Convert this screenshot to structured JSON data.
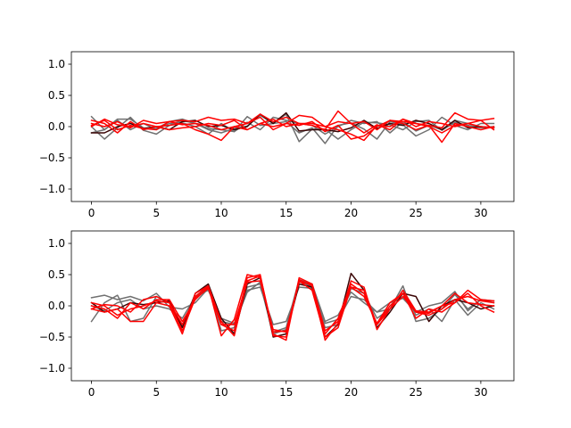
{
  "chart_data": [
    {
      "type": "line",
      "xlim": [
        -1.55,
        32.55
      ],
      "ylim": [
        -1.2,
        1.2
      ],
      "x_ticks": [
        0,
        5,
        10,
        15,
        20,
        25,
        30
      ],
      "y_ticks": [
        -1.0,
        -0.5,
        0.0,
        0.5,
        1.0
      ],
      "x_tick_labels": [
        "0",
        "5",
        "10",
        "15",
        "20",
        "25",
        "30"
      ],
      "y_tick_labels": [
        "−1.0",
        "−0.5",
        "0.0",
        "0.5",
        "1.0"
      ],
      "grid": false,
      "x": [
        0,
        1,
        2,
        3,
        4,
        5,
        6,
        7,
        8,
        9,
        10,
        11,
        12,
        13,
        14,
        15,
        16,
        17,
        18,
        19,
        20,
        21,
        22,
        23,
        24,
        25,
        26,
        27,
        28,
        29,
        30,
        31
      ],
      "series": [
        {
          "color": "#707070",
          "values": [
            0.16,
            -0.05,
            0.12,
            0.12,
            -0.02,
            -0.03,
            0.08,
            0.12,
            0.05,
            -0.03,
            -0.05,
            -0.08,
            0.16,
            0.02,
            0.05,
            0.2,
            -0.24,
            -0.04,
            -0.04,
            -0.2,
            -0.05,
            0.07,
            0.06,
            0.03,
            -0.05,
            0.08,
            0.1,
            -0.06,
            0.07,
            0.02,
            -0.02,
            -0.01
          ]
        },
        {
          "color": "#707070",
          "values": [
            0.0,
            -0.2,
            -0.02,
            0.15,
            -0.06,
            -0.12,
            0.02,
            0.1,
            0.05,
            -0.05,
            -0.1,
            -0.03,
            0.01,
            0.18,
            0.05,
            0.08,
            -0.1,
            -0.02,
            -0.27,
            0.02,
            0.06,
            -0.04,
            -0.2,
            0.08,
            0.03,
            -0.15,
            -0.05,
            0.15,
            0.02,
            -0.05,
            0.05,
            0.05
          ]
        },
        {
          "color": "#707070",
          "values": [
            -0.1,
            -0.05,
            0.1,
            -0.05,
            0.05,
            -0.05,
            0.05,
            0.06,
            0.0,
            -0.12,
            0.05,
            -0.08,
            0.07,
            -0.05,
            0.15,
            0.1,
            0.05,
            0.02,
            -0.12,
            0.0,
            0.1,
            0.05,
            0.08,
            -0.1,
            0.08,
            -0.07,
            0.02,
            -0.05,
            0.1,
            0.05,
            -0.01,
            0.0
          ]
        },
        {
          "color": "#3a0505",
          "values": [
            -0.1,
            -0.1,
            0.0,
            0.05,
            -0.03,
            0.0,
            -0.05,
            0.08,
            0.1,
            0.0,
            0.02,
            -0.05,
            0.0,
            0.2,
            0.05,
            0.22,
            -0.07,
            -0.05,
            -0.05,
            -0.08,
            -0.02,
            0.1,
            -0.03,
            0.05,
            0.02,
            0.1,
            0.05,
            -0.05,
            0.1,
            -0.02,
            0.0,
            -0.02
          ]
        },
        {
          "color": "#ff0000",
          "values": [
            0.05,
            0.0,
            0.08,
            -0.02,
            0.1,
            0.05,
            0.08,
            0.1,
            0.08,
            0.15,
            0.1,
            0.12,
            0.05,
            0.2,
            0.08,
            0.15,
            0.05,
            0.02,
            -0.05,
            0.25,
            0.05,
            0.08,
            -0.05,
            0.1,
            0.08,
            0.05,
            0.02,
            -0.02,
            0.22,
            0.12,
            0.1,
            0.13
          ]
        },
        {
          "color": "#ff0000",
          "values": [
            0.02,
            0.1,
            -0.05,
            0.02,
            -0.03,
            -0.05,
            0.08,
            0.03,
            0.05,
            0.02,
            -0.05,
            0.0,
            0.05,
            0.15,
            -0.05,
            0.05,
            0.02,
            0.08,
            -0.08,
            0.02,
            -0.2,
            -0.15,
            0.0,
            0.1,
            0.05,
            -0.05,
            0.02,
            -0.25,
            0.05,
            0.0,
            -0.05,
            0.0
          ]
        },
        {
          "color": "#ff0000",
          "values": [
            0.0,
            0.12,
            0.03,
            0.0,
            0.05,
            0.0,
            0.02,
            0.05,
            -0.05,
            -0.12,
            -0.22,
            0.0,
            -0.05,
            0.05,
            0.0,
            0.05,
            0.18,
            0.15,
            0.0,
            -0.05,
            -0.12,
            -0.22,
            0.02,
            0.0,
            0.12,
            0.05,
            0.0,
            -0.1,
            0.02,
            0.05,
            0.0,
            -0.02
          ]
        },
        {
          "color": "#ff0000",
          "values": [
            0.1,
            0.05,
            -0.1,
            0.08,
            -0.05,
            0.0,
            -0.05,
            -0.02,
            0.0,
            0.05,
            0.02,
            0.1,
            -0.05,
            0.05,
            0.12,
            0.0,
            0.05,
            0.05,
            0.0,
            0.08,
            0.05,
            -0.1,
            0.03,
            -0.05,
            0.12,
            0.0,
            0.08,
            0.05,
            0.0,
            0.05,
            0.1,
            -0.05
          ]
        }
      ]
    },
    {
      "type": "line",
      "xlim": [
        -1.55,
        32.55
      ],
      "ylim": [
        -1.2,
        1.2
      ],
      "x_ticks": [
        0,
        5,
        10,
        15,
        20,
        25,
        30
      ],
      "y_ticks": [
        -1.0,
        -0.5,
        0.0,
        0.5,
        1.0
      ],
      "x_tick_labels": [
        "0",
        "5",
        "10",
        "15",
        "20",
        "25",
        "30"
      ],
      "y_tick_labels": [
        "−1.0",
        "−0.5",
        "0.0",
        "0.5",
        "1.0"
      ],
      "grid": false,
      "x": [
        0,
        1,
        2,
        3,
        4,
        5,
        6,
        7,
        8,
        9,
        10,
        11,
        12,
        13,
        14,
        15,
        16,
        17,
        18,
        19,
        20,
        21,
        22,
        23,
        24,
        25,
        26,
        27,
        28,
        29,
        30,
        31
      ],
      "series": [
        {
          "color": "#707070",
          "values": [
            0.13,
            0.17,
            0.1,
            0.15,
            0.08,
            0.2,
            -0.02,
            -0.05,
            0.05,
            0.28,
            -0.25,
            -0.3,
            0.22,
            0.38,
            -0.42,
            -0.35,
            0.42,
            0.35,
            -0.25,
            -0.15,
            0.22,
            0.05,
            -0.1,
            -0.05,
            0.32,
            -0.25,
            -0.2,
            -0.05,
            0.18,
            -0.05,
            0.1,
            0.05
          ]
        },
        {
          "color": "#707070",
          "values": [
            -0.25,
            0.05,
            0.17,
            -0.25,
            -0.2,
            0.15,
            0.05,
            -0.32,
            0.12,
            0.3,
            -0.4,
            -0.35,
            0.3,
            0.35,
            -0.45,
            -0.38,
            0.4,
            0.3,
            -0.35,
            -0.3,
            0.28,
            0.2,
            -0.2,
            -0.05,
            0.25,
            -0.15,
            -0.05,
            -0.25,
            0.1,
            -0.15,
            0.05,
            -0.05
          ]
        },
        {
          "color": "#707070",
          "values": [
            0.0,
            -0.08,
            0.05,
            0.1,
            -0.05,
            0.0,
            -0.05,
            -0.2,
            0.15,
            0.25,
            -0.2,
            -0.28,
            0.25,
            0.3,
            -0.3,
            -0.25,
            0.3,
            0.28,
            -0.28,
            -0.22,
            0.15,
            0.1,
            -0.1,
            0.05,
            0.12,
            -0.1,
            0.0,
            0.05,
            0.23,
            -0.08,
            0.1,
            0.08
          ]
        },
        {
          "color": "#3a0505",
          "values": [
            0.05,
            -0.1,
            -0.05,
            0.05,
            0.02,
            0.05,
            0.08,
            -0.35,
            0.2,
            0.35,
            -0.2,
            -0.45,
            0.35,
            0.45,
            -0.5,
            -0.45,
            0.35,
            0.3,
            -0.5,
            -0.3,
            0.52,
            0.25,
            -0.35,
            -0.1,
            0.2,
            0.15,
            -0.25,
            0.0,
            0.1,
            0.05,
            -0.05,
            0.0
          ]
        },
        {
          "color": "#ff0000",
          "values": [
            -0.05,
            0.02,
            0.0,
            -0.1,
            0.1,
            0.15,
            0.05,
            -0.3,
            0.15,
            0.32,
            -0.48,
            -0.22,
            0.5,
            0.45,
            -0.45,
            -0.55,
            0.45,
            0.35,
            -0.55,
            -0.28,
            0.4,
            0.3,
            -0.38,
            -0.05,
            0.25,
            -0.08,
            -0.1,
            0.0,
            0.05,
            0.2,
            0.0,
            -0.1
          ]
        },
        {
          "color": "#ff0000",
          "values": [
            0.0,
            -0.05,
            -0.2,
            0.05,
            -0.05,
            0.1,
            0.1,
            -0.25,
            0.1,
            0.3,
            -0.3,
            -0.4,
            0.45,
            0.5,
            -0.48,
            -0.5,
            0.42,
            0.32,
            -0.45,
            -0.2,
            0.35,
            0.2,
            -0.3,
            -0.05,
            0.15,
            -0.1,
            -0.15,
            -0.05,
            0.1,
            0.15,
            0.08,
            0.05
          ]
        },
        {
          "color": "#ff0000",
          "values": [
            -0.05,
            -0.1,
            -0.05,
            -0.25,
            -0.25,
            0.05,
            0.0,
            -0.45,
            0.2,
            0.32,
            -0.25,
            -0.48,
            0.4,
            0.48,
            -0.42,
            -0.4,
            0.38,
            0.35,
            -0.4,
            -0.25,
            0.3,
            0.25,
            -0.3,
            0.0,
            0.2,
            -0.2,
            -0.05,
            -0.1,
            0.05,
            0.25,
            0.1,
            0.08
          ]
        },
        {
          "color": "#ff0000",
          "values": [
            0.05,
            0.0,
            -0.15,
            -0.05,
            0.0,
            0.08,
            0.05,
            -0.4,
            0.12,
            0.28,
            -0.3,
            -0.3,
            0.38,
            0.4,
            -0.38,
            -0.42,
            0.4,
            0.25,
            -0.5,
            -0.35,
            0.3,
            0.15,
            -0.28,
            0.05,
            0.2,
            -0.1,
            -0.12,
            0.0,
            0.2,
            0.05,
            0.02,
            0.0
          ]
        }
      ]
    }
  ]
}
